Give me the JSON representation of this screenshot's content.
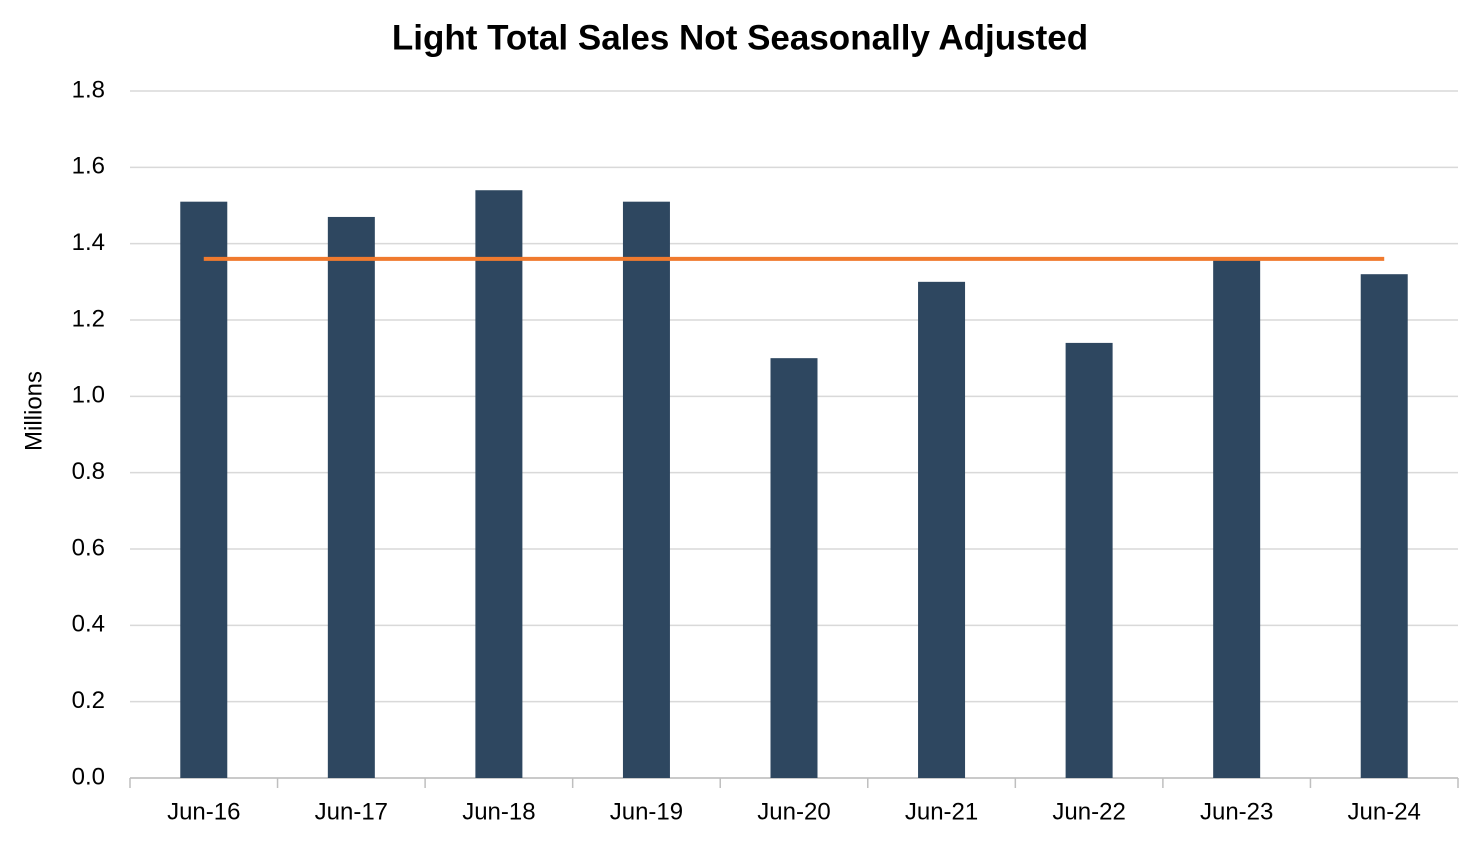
{
  "chart_data": {
    "type": "bar",
    "title": "Light Total Sales Not Seasonally Adjusted",
    "y_label": "Millions",
    "categories": [
      "Jun-16",
      "Jun-17",
      "Jun-18",
      "Jun-19",
      "Jun-20",
      "Jun-21",
      "Jun-22",
      "Jun-23",
      "Jun-24"
    ],
    "series": [
      {
        "type": "bar",
        "color": "#2e4760",
        "values": [
          1.51,
          1.47,
          1.54,
          1.51,
          1.1,
          1.3,
          1.14,
          1.36,
          1.32
        ]
      },
      {
        "type": "line",
        "color": "#f07a2e",
        "values": [
          1.36,
          1.36,
          1.36,
          1.36,
          1.36,
          1.36,
          1.36,
          1.36,
          1.36
        ]
      }
    ],
    "ylim": [
      0,
      1.8
    ],
    "yticks": [
      {
        "value": 0,
        "label": "0.0"
      },
      0.2,
      0.4,
      0.6,
      0.8,
      {
        "value": 1,
        "label": "1.0"
      },
      1.2,
      1.4,
      1.6,
      1.8
    ],
    "grid": true
  }
}
